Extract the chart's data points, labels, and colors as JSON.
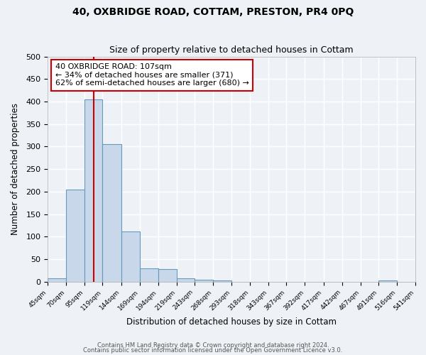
{
  "title": "40, OXBRIDGE ROAD, COTTAM, PRESTON, PR4 0PQ",
  "subtitle": "Size of property relative to detached houses in Cottam",
  "xlabel": "Distribution of detached houses by size in Cottam",
  "ylabel": "Number of detached properties",
  "bar_color": "#c8d8ea",
  "bar_edge_color": "#6699bb",
  "background_color": "#eef2f7",
  "grid_color": "white",
  "bin_edges": [
    45,
    70,
    95,
    119,
    144,
    169,
    194,
    219,
    243,
    268,
    293,
    318,
    343,
    367,
    392,
    417,
    442,
    467,
    491,
    516,
    541
  ],
  "bin_labels": [
    "45sqm",
    "70sqm",
    "95sqm",
    "119sqm",
    "144sqm",
    "169sqm",
    "194sqm",
    "219sqm",
    "243sqm",
    "268sqm",
    "293sqm",
    "318sqm",
    "343sqm",
    "367sqm",
    "392sqm",
    "417sqm",
    "442sqm",
    "467sqm",
    "491sqm",
    "516sqm",
    "541sqm"
  ],
  "bar_heights": [
    8,
    205,
    405,
    305,
    112,
    30,
    28,
    7,
    5,
    3,
    0,
    0,
    0,
    0,
    0,
    0,
    0,
    0,
    3,
    0
  ],
  "ylim": [
    0,
    500
  ],
  "yticks": [
    0,
    50,
    100,
    150,
    200,
    250,
    300,
    350,
    400,
    450,
    500
  ],
  "property_line_x": 107,
  "annotation_title": "40 OXBRIDGE ROAD: 107sqm",
  "annotation_line1": "← 34% of detached houses are smaller (371)",
  "annotation_line2": "62% of semi-detached houses are larger (680) →",
  "annotation_box_color": "white",
  "annotation_box_edge_color": "#cc0000",
  "vline_color": "#cc0000",
  "footer1": "Contains HM Land Registry data © Crown copyright and database right 2024.",
  "footer2": "Contains public sector information licensed under the Open Government Licence v3.0."
}
